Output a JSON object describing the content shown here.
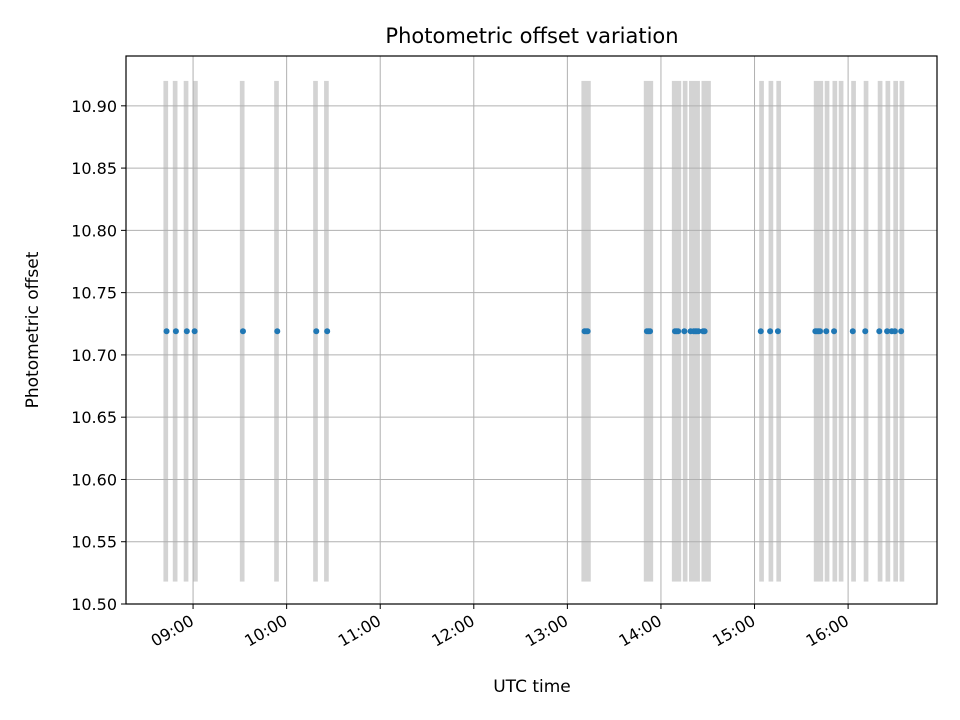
{
  "chart_data": {
    "type": "scatter",
    "title": "Photometric offset variation",
    "xlabel": "UTC time",
    "ylabel": "Photometric offset",
    "x_unit": "hours UTC",
    "xlim": [
      "08:17",
      "16:57"
    ],
    "ylim": [
      10.5,
      10.94
    ],
    "xticks": [
      "09:00",
      "10:00",
      "11:00",
      "12:00",
      "13:00",
      "14:00",
      "15:00",
      "16:00"
    ],
    "yticks": [
      "10.50",
      "10.55",
      "10.60",
      "10.65",
      "10.70",
      "10.75",
      "10.80",
      "10.85",
      "10.90"
    ],
    "grid": true,
    "colors": {
      "points": "#1f77b4",
      "spans": "#d3d3d3",
      "grid": "#b0b0b0"
    },
    "observation_spans": [
      [
        "08:41",
        "08:44"
      ],
      [
        "08:47",
        "08:50"
      ],
      [
        "08:54",
        "08:57"
      ],
      [
        "09:00",
        "09:03"
      ],
      [
        "09:30",
        "09:33"
      ],
      [
        "09:52",
        "09:55"
      ],
      [
        "10:17",
        "10:20"
      ],
      [
        "10:24",
        "10:27"
      ],
      [
        "13:09",
        "13:15"
      ],
      [
        "13:49",
        "13:55"
      ],
      [
        "14:07",
        "14:13"
      ],
      [
        "14:14",
        "14:17"
      ],
      [
        "14:18",
        "14:25"
      ],
      [
        "14:26",
        "14:32"
      ],
      [
        "15:03",
        "15:06"
      ],
      [
        "15:09",
        "15:12"
      ],
      [
        "15:14",
        "15:17"
      ],
      [
        "15:38",
        "15:44"
      ],
      [
        "15:45",
        "15:48"
      ],
      [
        "15:50",
        "15:53"
      ],
      [
        "15:54",
        "15:57"
      ],
      [
        "16:02",
        "16:05"
      ],
      [
        "16:10",
        "16:13"
      ],
      [
        "16:19",
        "16:22"
      ],
      [
        "16:24",
        "16:27"
      ],
      [
        "16:29",
        "16:32"
      ],
      [
        "16:33",
        "16:36"
      ]
    ],
    "series": [
      {
        "y": 10.719,
        "x": [
          "08:43",
          "08:49",
          "08:56",
          "09:01",
          "09:32",
          "09:54",
          "10:19",
          "10:26",
          "13:11",
          "13:12",
          "13:13",
          "13:51",
          "13:52",
          "13:53",
          "14:09",
          "14:10",
          "14:11",
          "14:15",
          "14:19",
          "14:21",
          "14:22",
          "14:23",
          "14:24",
          "14:27",
          "14:28",
          "15:04",
          "15:10",
          "15:15",
          "15:39",
          "15:40",
          "15:41",
          "15:42",
          "15:46",
          "15:51",
          "16:03",
          "16:11",
          "16:20",
          "16:25",
          "16:28",
          "16:30",
          "16:34"
        ]
      }
    ]
  }
}
